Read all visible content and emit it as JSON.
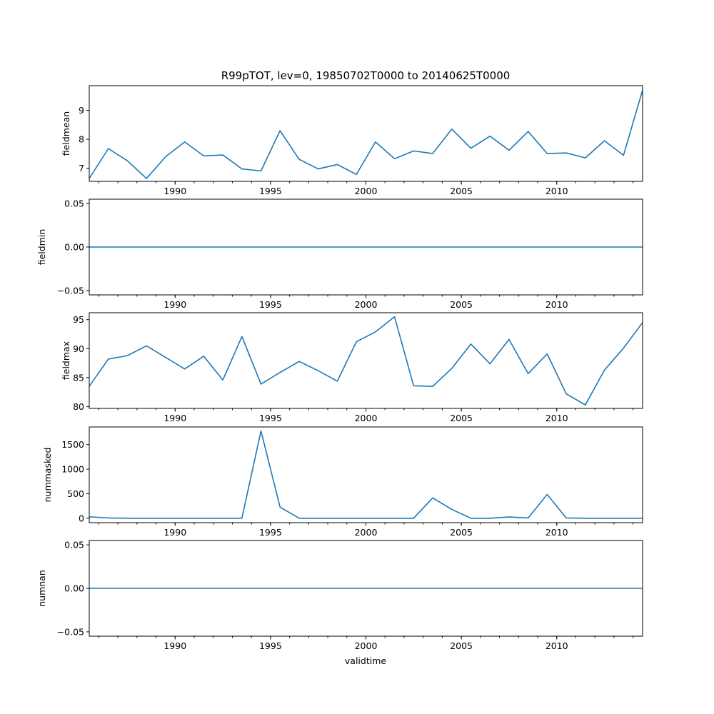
{
  "chart_data": {
    "type": "line",
    "title": "R99pTOT, lev=0, 19850702T0000 to 20140625T0000",
    "xlabel": "validtime",
    "xlim": [
      1985.5,
      2014.5
    ],
    "xticks": [
      1990,
      1995,
      2000,
      2005,
      2010
    ],
    "x": [
      1985.5,
      1986.5,
      1987.5,
      1988.5,
      1989.5,
      1990.5,
      1991.5,
      1992.5,
      1993.5,
      1994.5,
      1995.5,
      1996.5,
      1997.5,
      1998.5,
      1999.5,
      2000.5,
      2001.5,
      2002.5,
      2003.5,
      2004.5,
      2005.5,
      2006.5,
      2007.5,
      2008.5,
      2009.5,
      2010.5,
      2011.5,
      2012.5,
      2013.5,
      2014.5
    ],
    "panels": [
      {
        "ylabel": "fieldmean",
        "ylim": [
          6.55,
          9.85
        ],
        "yticks": [
          7,
          8,
          9
        ],
        "ytick_labels": [
          "7",
          "8",
          "9"
        ],
        "values": [
          6.65,
          7.68,
          7.26,
          6.65,
          7.4,
          7.91,
          7.43,
          7.46,
          6.98,
          6.91,
          8.3,
          7.31,
          6.98,
          7.13,
          6.79,
          7.91,
          7.33,
          7.6,
          7.51,
          8.35,
          7.69,
          8.11,
          7.62,
          8.27,
          7.51,
          7.53,
          7.36,
          7.95,
          7.45,
          9.7
        ]
      },
      {
        "ylabel": "fieldmin",
        "ylim": [
          -0.055,
          0.055
        ],
        "yticks": [
          -0.05,
          0.0,
          0.05
        ],
        "ytick_labels": [
          "−0.05",
          "0.00",
          "0.05"
        ],
        "values": [
          0,
          0,
          0,
          0,
          0,
          0,
          0,
          0,
          0,
          0,
          0,
          0,
          0,
          0,
          0,
          0,
          0,
          0,
          0,
          0,
          0,
          0,
          0,
          0,
          0,
          0,
          0,
          0,
          0,
          0
        ]
      },
      {
        "ylabel": "fieldmax",
        "ylim": [
          79.7,
          96.2
        ],
        "yticks": [
          80,
          85,
          90,
          95
        ],
        "ytick_labels": [
          "80",
          "85",
          "90",
          "95"
        ],
        "values": [
          83.5,
          88.2,
          88.8,
          90.5,
          88.5,
          86.5,
          88.7,
          84.6,
          92.1,
          83.9,
          85.9,
          87.8,
          86.2,
          84.4,
          91.2,
          92.9,
          95.5,
          83.6,
          83.5,
          86.6,
          90.8,
          87.4,
          91.6,
          85.7,
          89.1,
          82.2,
          80.3,
          86.3,
          90.1,
          94.5
        ]
      },
      {
        "ylabel": "nummasked",
        "ylim": [
          -90,
          1860
        ],
        "yticks": [
          0,
          500,
          1000,
          1500
        ],
        "ytick_labels": [
          "0",
          "500",
          "1000",
          "1500"
        ],
        "values": [
          30,
          5,
          0,
          0,
          0,
          0,
          0,
          0,
          0,
          1780,
          225,
          0,
          0,
          0,
          0,
          0,
          0,
          0,
          415,
          180,
          0,
          0,
          25,
          5,
          485,
          5,
          0,
          0,
          0,
          0
        ]
      },
      {
        "ylabel": "numnan",
        "ylim": [
          -0.055,
          0.055
        ],
        "yticks": [
          -0.05,
          0.0,
          0.05
        ],
        "ytick_labels": [
          "−0.05",
          "0.00",
          "0.05"
        ],
        "values": [
          0,
          0,
          0,
          0,
          0,
          0,
          0,
          0,
          0,
          0,
          0,
          0,
          0,
          0,
          0,
          0,
          0,
          0,
          0,
          0,
          0,
          0,
          0,
          0,
          0,
          0,
          0,
          0,
          0,
          0
        ]
      }
    ],
    "grid": false,
    "colors": {
      "line": "#1f77b4"
    }
  }
}
